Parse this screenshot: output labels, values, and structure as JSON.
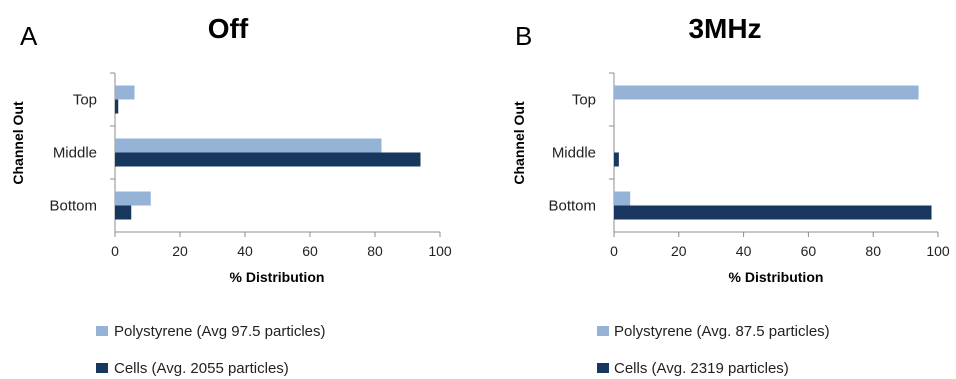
{
  "chart_data": [
    {
      "type": "bar",
      "orientation": "horizontal",
      "panel": "A",
      "title": "Off",
      "xlabel": "% Distribution",
      "ylabel": "Channel Out",
      "categories": [
        "Top",
        "Middle",
        "Bottom"
      ],
      "xlim": [
        0,
        100
      ],
      "xticks": [
        "0",
        "20",
        "40",
        "60",
        "80",
        "100"
      ],
      "grid": false,
      "series": [
        {
          "name": "Polystyrene (Avg 97.5 particles)",
          "color": "#95b3d7",
          "values": [
            6,
            82,
            11
          ]
        },
        {
          "name": "Cells (Avg. 2055 particles)",
          "color": "#17375e",
          "values": [
            1,
            94,
            5
          ]
        }
      ]
    },
    {
      "type": "bar",
      "orientation": "horizontal",
      "panel": "B",
      "title": "3MHz",
      "xlabel": "% Distribution",
      "ylabel": "Channel Out",
      "categories": [
        "Top",
        "Middle",
        "Bottom"
      ],
      "xlim": [
        0,
        100
      ],
      "xticks": [
        "0",
        "20",
        "40",
        "60",
        "80",
        "100"
      ],
      "grid": false,
      "series": [
        {
          "name": "Polystyrene (Avg. 87.5 particles)",
          "color": "#95b3d7",
          "values": [
            94,
            0,
            5
          ]
        },
        {
          "name": "Cells (Avg. 2319 particles)",
          "color": "#17375e",
          "values": [
            0,
            1.5,
            98
          ]
        }
      ]
    }
  ]
}
